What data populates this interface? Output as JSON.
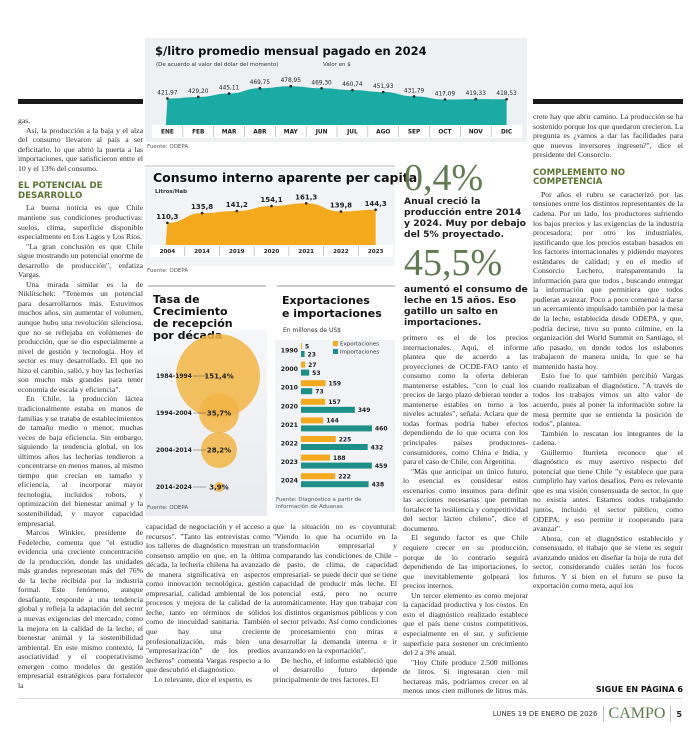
{
  "price_chart": {
    "title": "$/litro  promedio mensual pagado en 2024",
    "subtitle": "(De acuerdo al valor del dólar del momento)",
    "unit_note": "Valor en $",
    "source": "Fuente: ODEPA"
  },
  "consumption_chart": {
    "title": "Consumo interno aparente per capita",
    "unit": "Litros/Hab",
    "source": "Fuente: ODEPA"
  },
  "growth_chart": {
    "title_lines": [
      "Tasa de",
      "Crecimiento",
      "de recepción",
      "por década"
    ],
    "source": "Fuente: ODEPA"
  },
  "trade_chart": {
    "title_lines": [
      "Exportaciones",
      "e importaciones"
    ],
    "unit": "En millones de US$",
    "source_lines": [
      "Fuente: Diagnóstico a partir de",
      "información de Aduanas"
    ]
  },
  "chart_data": [
    {
      "type": "area",
      "title": "$/litro  promedio mensual pagado en 2024",
      "categories": [
        "ENE",
        "FEB",
        "MAR",
        "ABR",
        "MAY",
        "JUN",
        "JUL",
        "AGO",
        "SEP",
        "OCT",
        "NOV",
        "DIC"
      ],
      "values": [
        421.97,
        429.2,
        445.11,
        469.75,
        478.95,
        469.3,
        460.74,
        451.93,
        431.79,
        417.09,
        419.33,
        418.53
      ],
      "labels": [
        "421,97",
        "429,20",
        "445,11",
        "469,75",
        "478,95",
        "469,30",
        "460,74",
        "451,93",
        "431,79",
        "417,09",
        "419,33",
        "418,53"
      ],
      "color": "#1aaba5"
    },
    {
      "type": "area",
      "title": "Consumo interno aparente per capita",
      "ylabel": "Litros/Hab",
      "categories": [
        "2004",
        "2014",
        "2019",
        "2020",
        "2021",
        "2022",
        "2023"
      ],
      "values": [
        110.3,
        135.8,
        141.2,
        154.1,
        161.3,
        139.8,
        144.3
      ],
      "labels": [
        "110,3",
        "135,8",
        "141,2",
        "154,1",
        "161,3",
        "139,8",
        "144,3"
      ],
      "color": "#f5a91c"
    },
    {
      "type": "bubble",
      "title": "Tasa de Crecimiento de recepción por década",
      "categories": [
        "1984-1994",
        "1994-2004",
        "2004-2014",
        "2014-2024"
      ],
      "values": [
        151.4,
        35.7,
        28.2,
        3.9
      ],
      "labels": [
        "151,4%",
        "35,7%",
        "28,2%",
        "3,9%"
      ],
      "color": "#f2b544"
    },
    {
      "type": "bar",
      "orientation": "horizontal",
      "title": "Exportaciones e importaciones",
      "ylabel": "En millones de US$",
      "categories": [
        "1990",
        "2000",
        "2010",
        "2020",
        "2021",
        "2022",
        "2023",
        "2024"
      ],
      "series": [
        {
          "name": "Exportaciones",
          "values": [
            5,
            27,
            159,
            157,
            144,
            225,
            188,
            222
          ],
          "color": "#f5a91c"
        },
        {
          "name": "Importaciones",
          "values": [
            23,
            53,
            73,
            349,
            460,
            432,
            459,
            438
          ],
          "color": "#1c8f86"
        }
      ],
      "legend": "top-right"
    }
  ],
  "stats": [
    {
      "value": "0,4%",
      "text": "Anual creció la producción entre 2014 y 2024. Muy por debajo del 5% proyectado."
    },
    {
      "value": "45,5%",
      "text": "aumentó el consumo de leche en 15 años. Eso gatillo un salto en importaciones."
    }
  ],
  "col1": {
    "p0": "gas.",
    "p1": "Así, la producción a la baja y el alza del consumo llevaron al país a ser deficitario, lo que abrió la puerta a las importaciones, que satisficieron entre el 10 y el 13% del consumo.",
    "h1": "EL POTENCIAL DE DESARROLLO",
    "p2": "La buena noticia es que Chile mantiene sus condiciones productivas: suelos, clima, superficie disponible especialmente en Los Lagos y Los Ríos.",
    "p3": "\"La gran conclusión es que Chile sigue mostrando un potencial enorme de desarrollo de producción\", enfatiza Vargas.",
    "p4": "Una mirada similar es la de Niklitschek: \"Tenemos un potencial para desarrollarnos más. Estuvimos muchos años, sin aumentar el volumen, aunque hubo una revolución silenciosa, que no se reflejaba en volúmenes de producción, que se dio especialmente a nivel de gestión y tecnología. Hoy el sector es muy desarrollado. El que no hizo el cambio, salió, y hoy las lecherías son mucho más grandes para tener economía de escala y eficiencia\".",
    "p5": "En Chile, la producción láctea tradicionalmente estaba en manos de familias y se trataba de establecimientos de tamaño medio o menor, muchas veces de baja eficiencia. Sin embargo, siguiendo la tendencia global, en los últimos años las lecherías tendieron a concentrarse en menos manos, al mismo tiempo que crecían en tamaño y eficiencia, al incorporar mayor tecnología, incluidos robots, y optimización del bienestar animal y la sostenibilidad, y mayor capacidad empresarial.",
    "p6": "Marcos Winkler, presidente de Fedeleche, comenta que \"el estudio evidencia una creciente concentración de la producción, donde las unidades más grandes representan más del 76% de la leche recibida por la industria formal. Este fenómeno, aunque desafiante, responde a una tendencia global y refleja la adaptación del sector a nuevas exigencias del mercado, como la mejora en la calidad de la leche, el bienestar animal y la sostenibilidad ambiental. En este mismo contexto, la asociatividad y el cooperativismo emergen como modelos de gestión empresarial estratégicos para fortalecer la"
  },
  "col2": {
    "p1": "capacidad de negociación y el acceso a recursos\". \"Tanto las entrevistas como los talleres de diagnóstico muestran un consenso amplio en que, en la última década, la lechería chilena ha avanzado de manera significativa en aspectos como innovación tecnológica, gestión empresarial, calidad ambiental de los procesos y mejora de la calidad de la leche, tanto en términos de sólidos como de inocuidad sanitaria. También que hay una creciente profesionalización, más bien una \"empresarización\" de los predios lecheros\" comenta Vargas respecto a lo que descubrió el diagnóstico.",
    "p2": "Lo relevante, dice el experto, es"
  },
  "col3": {
    "p1": "que la situación no es coyuntural: \"Viendo lo que ha ocurrido en la transformación empresarial y comparando las condiciones de Chile -de pasto, de clima, de capacidad empresarial- se puede decir que se tiene capacidad de producir más leche. El potencial está, pero no ocurre automáticamente. Hay que trabajar con los distintos organismos públicos y con el sector privado. Así como condiciones de procesamiento con miras a desarrollar la demanda interna e ir avanzando en la exportación\".",
    "p2": "De hecho, el informe estableció que el desarrollo futuro depende principalmente de tres factores. El"
  },
  "col4": {
    "p1": "primero es el de los precios internacionales. Aquí, el informe plantea que de acuerdo a las proyecciones de OCDE-FAO tanto el consumo como la oferta debieran mantenerse estables, \"con lo cual los precios de largo plazo debieran tender a mantenerse estables en torno a los niveles actuales\", señala. Aclara que de todas formas podría haber efectos dependiendo de lo que ocurra con los principales países productores-consumidores, como China e India, y para el caso de Chile, con Argentina.",
    "p2": "\"Más que anticipar un único futuro, lo esencial es considerar estos escenarios como insumos para definir las acciones necesarias que permitan fortalecer la resiliencia y competitividad del sector lácteo chileno\", dice el documento.",
    "p3": "El segundo factor es que Chile requiere crecer en su producción, porque de lo contrario seguirá dependiendo de las importaciones, lo que inevitablemente golpeará los precios internos.",
    "p4": "Un tercer elemento es como mejorar la capacidad productiva y los costos. En esto el diagnóstico realizado establece que el país tiene costos competitivos, especialmente en el sur, y suficiente superficie para sostener un crecimiento del 2 a 3% anual.",
    "p5": "\"Hoy Chile produce 2.500 millones de litros. Si ingresaran cien mil hectareas más, podríamos crecer en al menos unos cien millones de litros más. Pero para que eso se con-"
  },
  "col5": {
    "p1": "crete hay que abrir camino. La producción se ha sostenido porque los que quedaron crecieron. La pregunta es ¿vamos a dar las facilidades para que nuevos inversores ingresen?\", dice el presidente del Consorcio.",
    "h1": "COMPLEMENTO NO COMPETENCIA",
    "p2": "Por años el rubro se caracterizó por las tensiones entre los distintos representantes de la cadena. Por un lado, los productores sufriendo los bajos precios y las exigencias de la industria procesadora; por otro los industriales, justificando que los precios estaban basados en los factores internacionales y pidiendo mayores estándares de calidad; y en el medio el Consorcio Lechero, transparentando la información para que todos , buscando entregar la información que permitiera que todos pudieran avanzar. Poco a poco comenzó a darse un acercamiento impulsado también por la mesa de la leche, establecida desde ODEPA, y que, podría decirse, tuvo su punto cúlmine, en la organización del World Summit en Santiago, el año pasado, en donde todos los eslabones trabajaron de manera unida, lo que se ha mantenido hasta hoy.",
    "p3": "Esto fue lo que también percibió Vargas cuando realizaban el diagnóstico. \"A través de todos los trabajos vimos un alto valor de acuerdo, pues al poner la información sobre la mesa permite que se entienda la posición de todos\", plantea.",
    "p4": "También lo rescatan los integrantes de la cadena.",
    "p5": "Guillermo Iturrieta reconoce que el diagnóstico es muy asertivo respecto del potencial que tiene Chile \"y establece que para cumplirlo hay varios desafíos. Pero es relevante que es una visión consensuada de sector, lo que no existía antes. Estamos todos trabajando juntos, incluido el sector público, como ODEPA, y eso permite ir cooperando para avanzar\".",
    "p6": "Ahora, con el diagnóstico establecido y consensuado, el trabajo que se viene es seguir avanzando unidos en diseñar la hoja de ruta del sector, considerando cuáles serán los focos futuros. Y si bien en el futuro se puso la exportación como meta, aquí los",
    "continued": "SIGUE EN PÁGINA 6"
  },
  "footer": {
    "date": "LUNES 19 DE ENERO DE 2026",
    "section": "CAMPO",
    "page": "5"
  }
}
